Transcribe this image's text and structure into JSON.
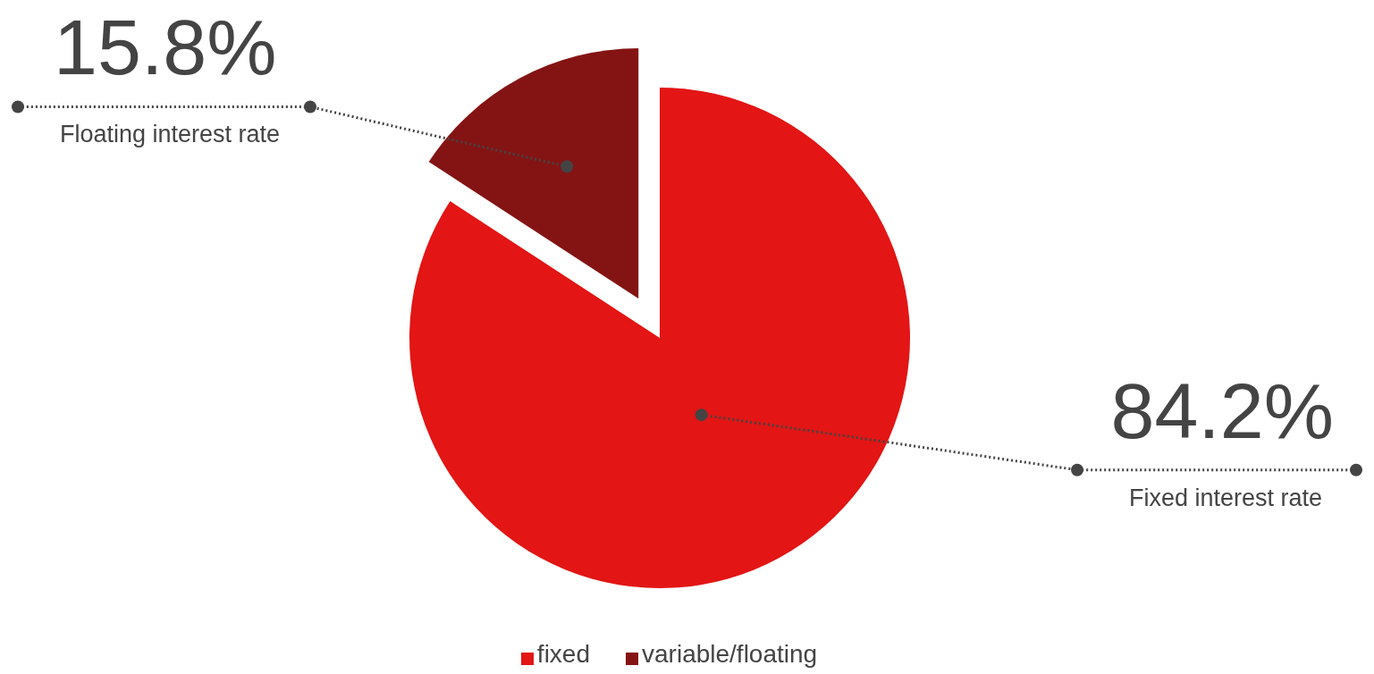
{
  "chart_data": {
    "type": "pie",
    "categories": [
      "fixed",
      "variable/floating"
    ],
    "values": [
      84.2,
      15.8
    ],
    "colors": [
      "#e31515",
      "#841414"
    ],
    "value_labels": [
      "84.2%",
      "15.8%"
    ],
    "annotations": [
      "Fixed interest rate",
      "Floating interest rate"
    ],
    "legend": "bottom"
  }
}
